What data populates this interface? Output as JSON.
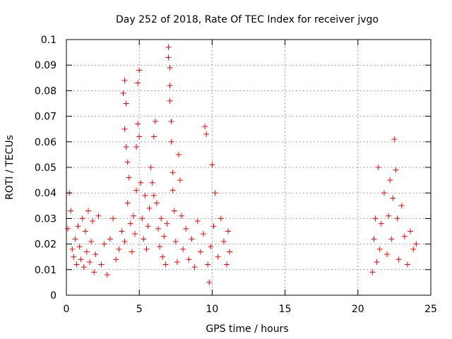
{
  "chart_data": {
    "type": "scatter",
    "title": "Day 252 of 2018, Rate Of TEC Index for receiver jvgo",
    "xlabel": "GPS time / hours",
    "ylabel": "ROTI / TECUs",
    "xlim": [
      0,
      25
    ],
    "ylim": [
      0,
      0.1
    ],
    "xticks": [
      0,
      5,
      10,
      15,
      20,
      25
    ],
    "xtick_labels": [
      "0",
      "5",
      "10",
      "15",
      "20",
      "25"
    ],
    "yticks": [
      0,
      0.01,
      0.02,
      0.03,
      0.04,
      0.05,
      0.06,
      0.07,
      0.08,
      0.09,
      0.1
    ],
    "ytick_labels": [
      "0",
      "0.01",
      "0.02",
      "0.03",
      "0.04",
      "0.05",
      "0.06",
      "0.07",
      "0.08",
      "0.09",
      "0.1"
    ],
    "grid": true,
    "marker": "+",
    "marker_color": "#ff0000",
    "series": [
      {
        "name": "ROTI",
        "points": [
          [
            0.1,
            0.026
          ],
          [
            0.2,
            0.04
          ],
          [
            0.3,
            0.033
          ],
          [
            0.4,
            0.018
          ],
          [
            0.5,
            0.015
          ],
          [
            0.6,
            0.022
          ],
          [
            0.7,
            0.012
          ],
          [
            0.8,
            0.027
          ],
          [
            0.9,
            0.019
          ],
          [
            1.0,
            0.014
          ],
          [
            1.1,
            0.03
          ],
          [
            1.2,
            0.011
          ],
          [
            1.3,
            0.025
          ],
          [
            1.4,
            0.017
          ],
          [
            1.5,
            0.033
          ],
          [
            1.6,
            0.013
          ],
          [
            1.7,
            0.021
          ],
          [
            1.8,
            0.029
          ],
          [
            1.9,
            0.009
          ],
          [
            2.0,
            0.016
          ],
          [
            2.2,
            0.031
          ],
          [
            2.4,
            0.012
          ],
          [
            2.6,
            0.02
          ],
          [
            2.8,
            0.008
          ],
          [
            3.0,
            0.022
          ],
          [
            3.2,
            0.03
          ],
          [
            3.4,
            0.014
          ],
          [
            3.6,
            0.018
          ],
          [
            3.8,
            0.025
          ],
          [
            4.0,
            0.021
          ],
          [
            3.9,
            0.079
          ],
          [
            4.0,
            0.084
          ],
          [
            4.1,
            0.075
          ],
          [
            4.0,
            0.065
          ],
          [
            4.1,
            0.058
          ],
          [
            4.2,
            0.052
          ],
          [
            4.3,
            0.046
          ],
          [
            4.2,
            0.036
          ],
          [
            4.4,
            0.028
          ],
          [
            4.5,
            0.017
          ],
          [
            4.6,
            0.031
          ],
          [
            4.7,
            0.024
          ],
          [
            4.8,
            0.041
          ],
          [
            4.8,
            0.058
          ],
          [
            4.9,
            0.067
          ],
          [
            4.9,
            0.083
          ],
          [
            5.0,
            0.088
          ],
          [
            5.0,
            0.062
          ],
          [
            5.1,
            0.044
          ],
          [
            5.2,
            0.03
          ],
          [
            5.3,
            0.022
          ],
          [
            5.4,
            0.039
          ],
          [
            5.5,
            0.018
          ],
          [
            5.6,
            0.027
          ],
          [
            5.7,
            0.034
          ],
          [
            5.8,
            0.05
          ],
          [
            5.9,
            0.044
          ],
          [
            6.0,
            0.039
          ],
          [
            6.0,
            0.062
          ],
          [
            6.1,
            0.068
          ],
          [
            6.2,
            0.036
          ],
          [
            6.3,
            0.026
          ],
          [
            6.4,
            0.019
          ],
          [
            6.5,
            0.03
          ],
          [
            6.6,
            0.015
          ],
          [
            6.7,
            0.023
          ],
          [
            6.8,
            0.012
          ],
          [
            6.9,
            0.028
          ],
          [
            7.0,
            0.097
          ],
          [
            7.0,
            0.093
          ],
          [
            7.1,
            0.089
          ],
          [
            7.1,
            0.082
          ],
          [
            7.1,
            0.076
          ],
          [
            7.2,
            0.068
          ],
          [
            7.2,
            0.06
          ],
          [
            7.3,
            0.048
          ],
          [
            7.3,
            0.041
          ],
          [
            7.4,
            0.033
          ],
          [
            7.5,
            0.021
          ],
          [
            7.6,
            0.013
          ],
          [
            7.7,
            0.055
          ],
          [
            7.8,
            0.045
          ],
          [
            7.9,
            0.031
          ],
          [
            8.0,
            0.018
          ],
          [
            8.2,
            0.026
          ],
          [
            8.4,
            0.014
          ],
          [
            8.6,
            0.022
          ],
          [
            8.8,
            0.011
          ],
          [
            9.0,
            0.029
          ],
          [
            9.2,
            0.017
          ],
          [
            9.4,
            0.024
          ],
          [
            9.5,
            0.066
          ],
          [
            9.6,
            0.063
          ],
          [
            9.7,
            0.012
          ],
          [
            9.8,
            0.005
          ],
          [
            9.9,
            0.019
          ],
          [
            10.0,
            0.051
          ],
          [
            10.1,
            0.027
          ],
          [
            10.2,
            0.04
          ],
          [
            10.4,
            0.015
          ],
          [
            10.6,
            0.03
          ],
          [
            10.8,
            0.021
          ],
          [
            11.0,
            0.012
          ],
          [
            11.1,
            0.025
          ],
          [
            11.2,
            0.017
          ],
          [
            21.0,
            0.009
          ],
          [
            21.1,
            0.022
          ],
          [
            21.2,
            0.03
          ],
          [
            21.3,
            0.013
          ],
          [
            21.4,
            0.05
          ],
          [
            21.5,
            0.018
          ],
          [
            21.6,
            0.028
          ],
          [
            21.8,
            0.04
          ],
          [
            22.0,
            0.016
          ],
          [
            22.1,
            0.031
          ],
          [
            22.2,
            0.045
          ],
          [
            22.3,
            0.022
          ],
          [
            22.4,
            0.038
          ],
          [
            22.5,
            0.061
          ],
          [
            22.6,
            0.049
          ],
          [
            22.7,
            0.03
          ],
          [
            22.8,
            0.014
          ],
          [
            23.0,
            0.035
          ],
          [
            23.2,
            0.023
          ],
          [
            23.4,
            0.012
          ],
          [
            23.6,
            0.025
          ],
          [
            23.8,
            0.018
          ],
          [
            24.0,
            0.02
          ]
        ]
      }
    ]
  }
}
